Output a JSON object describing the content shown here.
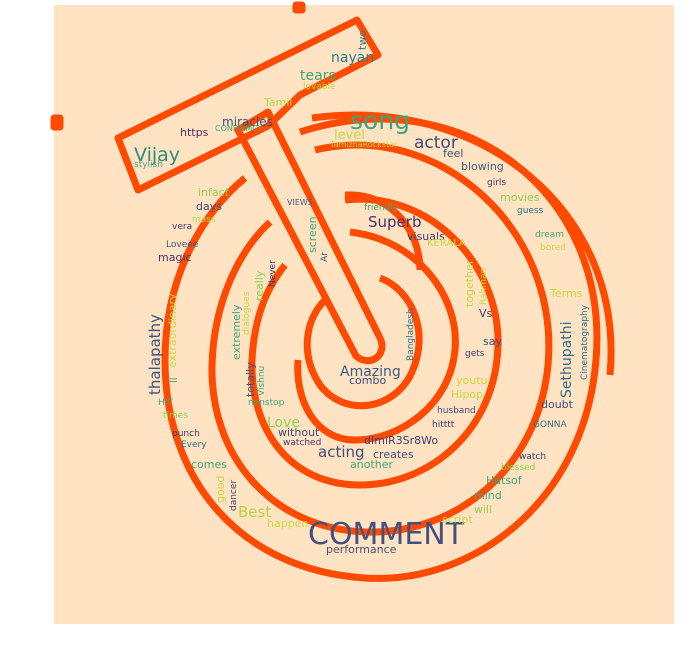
{
  "colors": {
    "background": "#ffe3c2",
    "outline": "#ff4a00"
  },
  "words": [
    {
      "id": "comment",
      "text": "COMMENT",
      "color": "#45507f"
    },
    {
      "id": "song",
      "text": "song",
      "color": "#3aa57f"
    },
    {
      "id": "vijay",
      "text": "Vijay",
      "color": "#2a8f7d"
    },
    {
      "id": "actor",
      "text": "actor",
      "color": "#3b4d7c"
    },
    {
      "id": "superb",
      "text": "Superb",
      "color": "#4b2f6b"
    },
    {
      "id": "amazing",
      "text": "Amazing",
      "color": "#3d5d86"
    },
    {
      "id": "acting",
      "text": "acting",
      "color": "#3a4f80"
    },
    {
      "id": "best",
      "text": "Best",
      "color": "#b8d23e"
    },
    {
      "id": "love",
      "text": "Love",
      "color": "#8fcf4e"
    },
    {
      "id": "nayan",
      "text": "nayan",
      "color": "#2b7e8e"
    },
    {
      "id": "tears",
      "text": "tears",
      "color": "#3ea67a"
    },
    {
      "id": "thalapathy",
      "text": "thalapathy",
      "color": "#3a5480"
    },
    {
      "id": "sethupathi",
      "text": "Sethupathi",
      "color": "#2f6a8d"
    },
    {
      "id": "level",
      "text": "level",
      "color": "#c7d73b"
    },
    {
      "id": "miracles",
      "text": "miracles",
      "color": "#3e4e7c"
    },
    {
      "id": "visuals",
      "text": "visuals",
      "color": "#3c3d71"
    },
    {
      "id": "performance",
      "text": "performance",
      "color": "#45507f"
    },
    {
      "id": "tamil",
      "text": "Tamil",
      "color": "#b9d442"
    },
    {
      "id": "https",
      "text": "https",
      "color": "#4b2f6b"
    },
    {
      "id": "confirmcy",
      "text": "CONFIRMCY",
      "color": "#3ea67a"
    },
    {
      "id": "stylish",
      "text": "stylish",
      "color": "#47a98a"
    },
    {
      "id": "lovable",
      "text": "lovable",
      "color": "#c6d83e"
    },
    {
      "id": "two",
      "text": "two",
      "color": "#2a7d8e"
    },
    {
      "id": "tamizharockstar",
      "text": "TamizhaRockstar",
      "color": "#c9d84a"
    },
    {
      "id": "feel",
      "text": "feel",
      "color": "#3a4f80"
    },
    {
      "id": "blowing",
      "text": "blowing",
      "color": "#3b5e86"
    },
    {
      "id": "girls",
      "text": "girls",
      "color": "#3c3d71"
    },
    {
      "id": "movies",
      "text": "movies",
      "color": "#8fcf4e"
    },
    {
      "id": "guess",
      "text": "guess",
      "color": "#2d6f8a"
    },
    {
      "id": "dream",
      "text": "dream",
      "color": "#3ea67a"
    },
    {
      "id": "bored",
      "text": "bored",
      "color": "#c6d83e"
    },
    {
      "id": "kerala",
      "text": "KERALA",
      "color": "#c6d83e"
    },
    {
      "id": "friendly",
      "text": "friendly",
      "color": "#3ea67a"
    },
    {
      "id": "views",
      "text": "VIEWS",
      "color": "#3d5d86"
    },
    {
      "id": "infact",
      "text": "infact",
      "color": "#8fcf4e"
    },
    {
      "id": "days",
      "text": "days",
      "color": "#3a4f80"
    },
    {
      "id": "mass",
      "text": "mass",
      "color": "#c6d83e"
    },
    {
      "id": "vera",
      "text": "vera",
      "color": "#3c3d71"
    },
    {
      "id": "loveee",
      "text": "Loveee",
      "color": "#3a5480"
    },
    {
      "id": "magic",
      "text": "magic",
      "color": "#4b2f6b"
    },
    {
      "id": "extraordinary",
      "text": "extraordinary",
      "color": "#c6d83e"
    },
    {
      "id": "ll",
      "text": "ll",
      "color": "#3ea67a"
    },
    {
      "id": "hit",
      "text": "HIT",
      "color": "#3ea67a"
    },
    {
      "id": "times",
      "text": "times",
      "color": "#8fcf4e"
    },
    {
      "id": "punch",
      "text": "punch",
      "color": "#3c3d71"
    },
    {
      "id": "every",
      "text": "Every",
      "color": "#2d6f8a"
    },
    {
      "id": "comes",
      "text": "comes",
      "color": "#3ea67a"
    },
    {
      "id": "good",
      "text": "good",
      "color": "#c6d83e"
    },
    {
      "id": "dancer",
      "text": "dancer",
      "color": "#3c3d71"
    },
    {
      "id": "happen",
      "text": "happen",
      "color": "#c6d83e"
    },
    {
      "id": "script",
      "text": "script",
      "color": "#c6d83e"
    },
    {
      "id": "will",
      "text": "will",
      "color": "#8fcf4e"
    },
    {
      "id": "mind",
      "text": "mind",
      "color": "#3ea67a"
    },
    {
      "id": "hatsof",
      "text": "Hatsof",
      "color": "#3ea67a"
    },
    {
      "id": "blessed",
      "text": "blessed",
      "color": "#8fcf4e"
    },
    {
      "id": "watch",
      "text": "watch",
      "color": "#3c3d71"
    },
    {
      "id": "gonna",
      "text": "GONNA",
      "color": "#2d6f8a"
    },
    {
      "id": "doubt",
      "text": "doubt",
      "color": "#3a4f80"
    },
    {
      "id": "cinematography",
      "text": "Cinematography",
      "color": "#2d6f8a"
    },
    {
      "id": "terms",
      "text": "Terms",
      "color": "#c6d83e"
    },
    {
      "id": "screen",
      "text": "screen",
      "color": "#3ea67a"
    },
    {
      "id": "ar",
      "text": "Ar",
      "color": "#3a5480"
    },
    {
      "id": "never",
      "text": "Never",
      "color": "#3c3d71"
    },
    {
      "id": "really",
      "text": "really",
      "color": "#8fcf4e"
    },
    {
      "id": "dialogues",
      "text": "dialogues",
      "color": "#c6d83e"
    },
    {
      "id": "extremely",
      "text": "extremely",
      "color": "#3ea67a"
    },
    {
      "id": "totally",
      "text": "totally",
      "color": "#3a4f80"
    },
    {
      "id": "vishnu",
      "text": "Vishnu",
      "color": "#3ea67a"
    },
    {
      "id": "nonstop",
      "text": "nonstop",
      "color": "#3ea67a"
    },
    {
      "id": "without",
      "text": "without",
      "color": "#3a4f80"
    },
    {
      "id": "watched",
      "text": "watched",
      "color": "#3c3d71"
    },
    {
      "id": "combo",
      "text": "combo",
      "color": "#3a4f80"
    },
    {
      "id": "together",
      "text": "together",
      "color": "#c6d83e"
    },
    {
      "id": "rahman",
      "text": "Rahman",
      "color": "#c6d83e"
    },
    {
      "id": "vs",
      "text": "Vs",
      "color": "#3c3d71"
    },
    {
      "id": "say",
      "text": "say",
      "color": "#3a4f80"
    },
    {
      "id": "gets",
      "text": "gets",
      "color": "#3c3d71"
    },
    {
      "id": "bangladesh",
      "text": "Bangladesh",
      "color": "#2d6f8a"
    },
    {
      "id": "youtu",
      "text": "youtu",
      "color": "#c6d83e"
    },
    {
      "id": "hipop",
      "text": "Hipop",
      "color": "#c6d83e"
    },
    {
      "id": "husband",
      "text": "husband",
      "color": "#3a4f80"
    },
    {
      "id": "hitttt",
      "text": "hitttt",
      "color": "#3c3d71"
    },
    {
      "id": "dimir3sr8wo",
      "text": "dImiR3Sr8Wo",
      "color": "#3c3d71"
    },
    {
      "id": "creates",
      "text": "creates",
      "color": "#3a4f80"
    },
    {
      "id": "another",
      "text": "another",
      "color": "#3ea67a"
    }
  ]
}
